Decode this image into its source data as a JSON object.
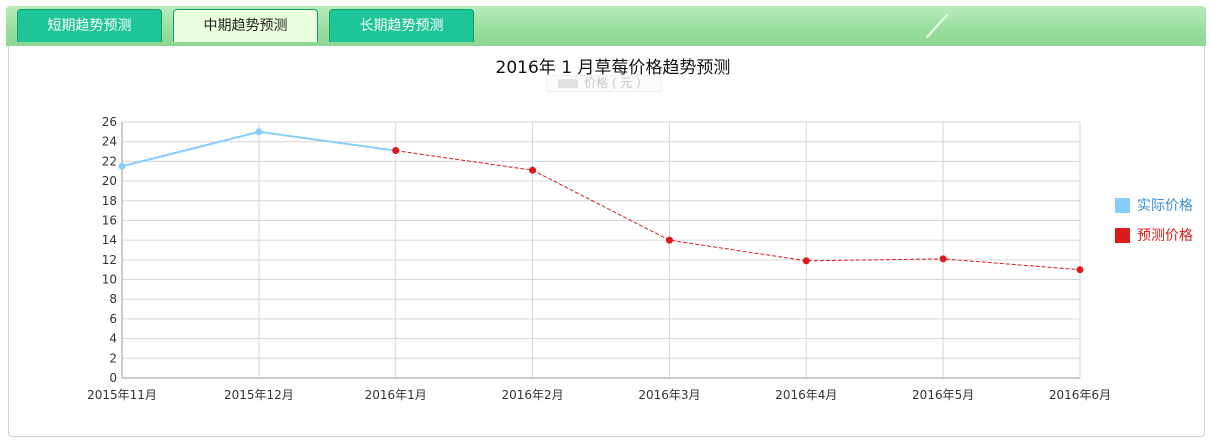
{
  "tabs": [
    {
      "label": "短期趋势预测",
      "active": false
    },
    {
      "label": "中期趋势预测",
      "active": true
    },
    {
      "label": "长期趋势预测",
      "active": false
    }
  ],
  "chart_data": {
    "type": "line",
    "title": "2016年 1 月草莓价格趋势预测",
    "series_label": "价格 ( 元 )",
    "xlabel": "",
    "ylabel": "",
    "categories": [
      "2015年11月",
      "2015年12月",
      "2016年1月",
      "2016年2月",
      "2016年3月",
      "2016年4月",
      "2016年5月",
      "2016年6月"
    ],
    "ylim": [
      0,
      26
    ],
    "yticks": [
      0,
      2,
      4,
      6,
      8,
      10,
      12,
      14,
      16,
      18,
      20,
      22,
      24,
      26
    ],
    "grid": true,
    "legend_position": "right",
    "series": [
      {
        "name": "实际价格",
        "color": "#87cefa",
        "style": "solid",
        "values": [
          21.5,
          25.0,
          23.1,
          null,
          null,
          null,
          null,
          null
        ]
      },
      {
        "name": "预测价格",
        "color": "#dd1a1a",
        "style": "dashed",
        "values": [
          null,
          null,
          23.1,
          21.1,
          14.0,
          11.9,
          12.1,
          11.0
        ]
      }
    ]
  }
}
